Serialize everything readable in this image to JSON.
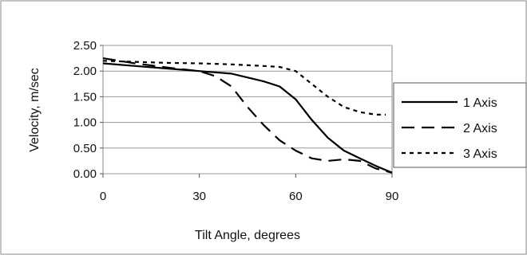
{
  "chart_data": {
    "type": "line",
    "title": "",
    "xlabel": "Tilt Angle, degrees",
    "ylabel": "Velocity, m/sec",
    "xlim": [
      0,
      90
    ],
    "ylim": [
      0,
      2.5
    ],
    "x_ticks": [
      0,
      30,
      60,
      90
    ],
    "x_tick_labels": [
      "0",
      "30",
      "60",
      "90"
    ],
    "y_ticks": [
      0,
      0.5,
      1.0,
      1.5,
      2.0,
      2.5
    ],
    "y_tick_labels": [
      "0.00",
      "0.50",
      "1.00",
      "1.50",
      "2.00",
      "2.50"
    ],
    "grid": "horizontal",
    "legend_position": "right",
    "series": [
      {
        "name": "1 Axis",
        "style": "solid",
        "color": "#000000",
        "points": [
          [
            0,
            2.15
          ],
          [
            10,
            2.1
          ],
          [
            20,
            2.05
          ],
          [
            30,
            2.0
          ],
          [
            40,
            1.95
          ],
          [
            50,
            1.8
          ],
          [
            55,
            1.7
          ],
          [
            60,
            1.45
          ],
          [
            65,
            1.05
          ],
          [
            70,
            0.7
          ],
          [
            75,
            0.45
          ],
          [
            80,
            0.3
          ],
          [
            85,
            0.15
          ],
          [
            90,
            0.02
          ]
        ]
      },
      {
        "name": "2 Axis",
        "style": "long-dash",
        "color": "#000000",
        "points": [
          [
            0,
            2.25
          ],
          [
            10,
            2.15
          ],
          [
            20,
            2.07
          ],
          [
            30,
            2.0
          ],
          [
            35,
            1.9
          ],
          [
            40,
            1.7
          ],
          [
            45,
            1.3
          ],
          [
            50,
            0.95
          ],
          [
            55,
            0.65
          ],
          [
            60,
            0.45
          ],
          [
            65,
            0.3
          ],
          [
            70,
            0.25
          ],
          [
            75,
            0.28
          ],
          [
            80,
            0.25
          ],
          [
            85,
            0.1
          ],
          [
            90,
            0.02
          ]
        ]
      },
      {
        "name": "3 Axis",
        "style": "short-dash",
        "color": "#000000",
        "points": [
          [
            0,
            2.2
          ],
          [
            10,
            2.18
          ],
          [
            20,
            2.16
          ],
          [
            30,
            2.15
          ],
          [
            40,
            2.13
          ],
          [
            50,
            2.1
          ],
          [
            55,
            2.08
          ],
          [
            60,
            2.0
          ],
          [
            65,
            1.75
          ],
          [
            70,
            1.5
          ],
          [
            75,
            1.3
          ],
          [
            80,
            1.2
          ],
          [
            85,
            1.15
          ],
          [
            88,
            1.15
          ]
        ]
      }
    ]
  }
}
